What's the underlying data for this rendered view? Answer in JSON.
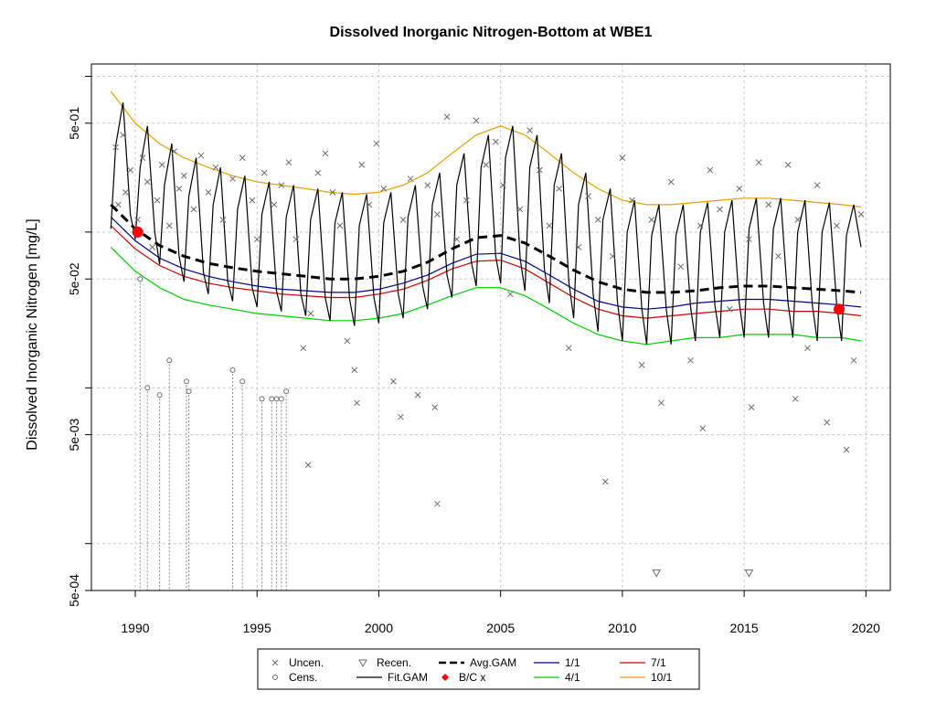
{
  "chart_data": {
    "type": "line",
    "title": "Dissolved Inorganic Nitrogen-Bottom at WBE1",
    "xlabel": "",
    "ylabel": "Dissolved Inorganic Nitrogen [mg/L]",
    "xlim": [
      1988.2,
      2021.0
    ],
    "ylim": [
      0.0005,
      1.2
    ],
    "y_scale": "log",
    "grid": true,
    "x_ticks": [
      1990,
      1995,
      2000,
      2005,
      2010,
      2015,
      2020
    ],
    "x_tick_labels": [
      "1990",
      "1995",
      "2000",
      "2005",
      "2010",
      "2015",
      "2020"
    ],
    "y_ticks": [
      0.0005,
      0.005,
      0.05,
      0.5
    ],
    "y_tick_labels": [
      "5e-04",
      "5e-03",
      "5e-02",
      "5e-01"
    ],
    "legend": {
      "placement": "bottom-center",
      "entries": [
        {
          "label": "Uncen.",
          "symbol": "x",
          "color": "#6b6b6b"
        },
        {
          "label": "Cens.",
          "symbol": "circle",
          "color": "#6b6b6b"
        },
        {
          "label": "Recen.",
          "symbol": "triangle-down",
          "color": "#6b6b6b"
        },
        {
          "label": "Fit.GAM",
          "symbol": "line",
          "color": "#000000"
        },
        {
          "label": "Avg.GAM",
          "symbol": "dashed-line",
          "color": "#000000"
        },
        {
          "label": "B/C x",
          "symbol": "diamond",
          "color": "#ff0000"
        },
        {
          "label": "1/1",
          "symbol": "line",
          "color": "#00008b"
        },
        {
          "label": "4/1",
          "symbol": "line",
          "color": "#00cc00"
        },
        {
          "label": "7/1",
          "symbol": "line",
          "color": "#cc0000"
        },
        {
          "label": "10/1",
          "symbol": "line",
          "color": "#e6a000"
        }
      ]
    },
    "series": [
      {
        "name": "Avg.GAM",
        "style": "dashed",
        "color": "#000000",
        "x": [
          1989.0,
          1990,
          1991,
          1992,
          1993,
          1994,
          1995,
          1996,
          1997,
          1998,
          1999,
          2000,
          2001,
          2002,
          2003,
          2004,
          2005,
          2006,
          2007,
          2008,
          2009,
          2010,
          2011,
          2012,
          2013,
          2014,
          2015,
          2016,
          2017,
          2018,
          2019,
          2019.8
        ],
        "y": [
          0.15,
          0.105,
          0.082,
          0.07,
          0.063,
          0.059,
          0.056,
          0.054,
          0.052,
          0.05,
          0.05,
          0.052,
          0.056,
          0.064,
          0.078,
          0.092,
          0.095,
          0.085,
          0.07,
          0.057,
          0.048,
          0.043,
          0.041,
          0.041,
          0.042,
          0.044,
          0.045,
          0.045,
          0.044,
          0.043,
          0.042,
          0.041
        ]
      },
      {
        "name": "1/1",
        "style": "solid",
        "color": "#00008b",
        "x": [
          1989.0,
          1990,
          1991,
          1992,
          1993,
          1994,
          1995,
          1996,
          1997,
          1998,
          1999,
          2000,
          2001,
          2002,
          2003,
          2004,
          2005,
          2006,
          2007,
          2008,
          2009,
          2010,
          2011,
          2012,
          2013,
          2014,
          2015,
          2016,
          2017,
          2018,
          2019,
          2019.8
        ],
        "y": [
          0.125,
          0.088,
          0.068,
          0.058,
          0.052,
          0.048,
          0.045,
          0.043,
          0.042,
          0.041,
          0.041,
          0.043,
          0.047,
          0.053,
          0.063,
          0.072,
          0.073,
          0.065,
          0.053,
          0.043,
          0.036,
          0.033,
          0.032,
          0.033,
          0.035,
          0.036,
          0.037,
          0.037,
          0.036,
          0.035,
          0.034,
          0.033
        ]
      },
      {
        "name": "7/1",
        "style": "solid",
        "color": "#cc0000",
        "x": [
          1989.0,
          1990,
          1991,
          1992,
          1993,
          1994,
          1995,
          1996,
          1997,
          1998,
          1999,
          2000,
          2001,
          2002,
          2003,
          2004,
          2005,
          2006,
          2007,
          2008,
          2009,
          2010,
          2011,
          2012,
          2013,
          2014,
          2015,
          2016,
          2017,
          2018,
          2019,
          2019.8
        ],
        "y": [
          0.11,
          0.078,
          0.061,
          0.052,
          0.047,
          0.044,
          0.042,
          0.04,
          0.039,
          0.038,
          0.038,
          0.04,
          0.043,
          0.049,
          0.058,
          0.065,
          0.066,
          0.058,
          0.047,
          0.038,
          0.032,
          0.029,
          0.028,
          0.029,
          0.03,
          0.031,
          0.032,
          0.032,
          0.031,
          0.031,
          0.03,
          0.029
        ]
      },
      {
        "name": "4/1",
        "style": "solid",
        "color": "#00cc00",
        "x": [
          1989.0,
          1990,
          1991,
          1992,
          1993,
          1994,
          1995,
          1996,
          1997,
          1998,
          1999,
          2000,
          2001,
          2002,
          2003,
          2004,
          2005,
          2006,
          2007,
          2008,
          2009,
          2010,
          2011,
          2012,
          2013,
          2014,
          2015,
          2016,
          2017,
          2018,
          2019,
          2019.8
        ],
        "y": [
          0.08,
          0.056,
          0.044,
          0.037,
          0.034,
          0.032,
          0.03,
          0.029,
          0.028,
          0.027,
          0.027,
          0.028,
          0.03,
          0.034,
          0.039,
          0.044,
          0.044,
          0.039,
          0.032,
          0.026,
          0.022,
          0.02,
          0.019,
          0.02,
          0.021,
          0.021,
          0.022,
          0.022,
          0.022,
          0.021,
          0.021,
          0.02
        ]
      },
      {
        "name": "10/1",
        "style": "solid",
        "color": "#e6a000",
        "x": [
          1989.0,
          1990,
          1991,
          1992,
          1993,
          1994,
          1995,
          1996,
          1997,
          1998,
          1999,
          2000,
          2001,
          2002,
          2003,
          2004,
          2005,
          2006,
          2007,
          2008,
          2009,
          2010,
          2011,
          2012,
          2013,
          2014,
          2015,
          2016,
          2017,
          2018,
          2019,
          2019.8
        ],
        "y": [
          0.8,
          0.5,
          0.37,
          0.3,
          0.26,
          0.23,
          0.21,
          0.2,
          0.19,
          0.18,
          0.175,
          0.18,
          0.2,
          0.24,
          0.32,
          0.42,
          0.48,
          0.42,
          0.32,
          0.24,
          0.19,
          0.16,
          0.15,
          0.15,
          0.155,
          0.16,
          0.165,
          0.165,
          0.16,
          0.155,
          0.15,
          0.145
        ]
      },
      {
        "name": "Fit.GAM",
        "style": "solid",
        "color": "#000000",
        "seasonal": true,
        "x": [
          1989.0,
          1989.2,
          1989.5,
          1989.8,
          1990.0,
          1990.2,
          1990.5,
          1990.8,
          1991.0,
          1991.2,
          1991.5,
          1991.8,
          1992.0,
          1992.2,
          1992.5,
          1992.8,
          1993.0,
          1993.2,
          1993.5,
          1993.8,
          1994.0,
          1994.2,
          1994.5,
          1994.8,
          1995.0,
          1995.2,
          1995.5,
          1995.8,
          1996.0,
          1996.2,
          1996.5,
          1996.8,
          1997.0,
          1997.2,
          1997.5,
          1997.8,
          1998.0,
          1998.2,
          1998.5,
          1998.8,
          1999.0,
          1999.2,
          1999.5,
          1999.8,
          2000.0,
          2000.2,
          2000.5,
          2000.8,
          2001.0,
          2001.2,
          2001.5,
          2001.8,
          2002.0,
          2002.2,
          2002.5,
          2002.8,
          2003.0,
          2003.2,
          2003.5,
          2003.8,
          2004.0,
          2004.2,
          2004.5,
          2004.8,
          2005.0,
          2005.2,
          2005.5,
          2005.8,
          2006.0,
          2006.2,
          2006.5,
          2006.8,
          2007.0,
          2007.2,
          2007.5,
          2007.8,
          2008.0,
          2008.2,
          2008.5,
          2008.8,
          2009.0,
          2009.2,
          2009.5,
          2009.8,
          2010.0,
          2010.2,
          2010.5,
          2010.8,
          2011.0,
          2011.2,
          2011.5,
          2011.8,
          2012.0,
          2012.2,
          2012.5,
          2012.8,
          2013.0,
          2013.2,
          2013.5,
          2013.8,
          2014.0,
          2014.2,
          2014.5,
          2014.8,
          2015.0,
          2015.2,
          2015.5,
          2015.8,
          2016.0,
          2016.2,
          2016.5,
          2016.8,
          2017.0,
          2017.2,
          2017.5,
          2017.8,
          2018.0,
          2018.2,
          2018.5,
          2018.8,
          2019.0,
          2019.2,
          2019.5,
          2019.8
        ],
        "y": [
          0.105,
          0.36,
          0.68,
          0.13,
          0.09,
          0.26,
          0.48,
          0.1,
          0.062,
          0.2,
          0.37,
          0.07,
          0.048,
          0.17,
          0.3,
          0.055,
          0.04,
          0.15,
          0.26,
          0.048,
          0.036,
          0.14,
          0.23,
          0.044,
          0.033,
          0.13,
          0.21,
          0.042,
          0.031,
          0.125,
          0.2,
          0.04,
          0.029,
          0.12,
          0.19,
          0.038,
          0.027,
          0.115,
          0.18,
          0.037,
          0.025,
          0.11,
          0.175,
          0.038,
          0.026,
          0.115,
          0.18,
          0.04,
          0.028,
          0.125,
          0.2,
          0.045,
          0.032,
          0.15,
          0.24,
          0.053,
          0.038,
          0.2,
          0.32,
          0.064,
          0.045,
          0.26,
          0.42,
          0.07,
          0.047,
          0.3,
          0.48,
          0.068,
          0.042,
          0.26,
          0.42,
          0.058,
          0.035,
          0.2,
          0.32,
          0.048,
          0.028,
          0.15,
          0.24,
          0.04,
          0.023,
          0.12,
          0.19,
          0.035,
          0.02,
          0.1,
          0.16,
          0.032,
          0.019,
          0.095,
          0.15,
          0.032,
          0.019,
          0.095,
          0.15,
          0.033,
          0.02,
          0.1,
          0.155,
          0.034,
          0.021,
          0.1,
          0.16,
          0.035,
          0.021,
          0.105,
          0.165,
          0.035,
          0.021,
          0.105,
          0.165,
          0.035,
          0.021,
          0.1,
          0.16,
          0.034,
          0.02,
          0.1,
          0.155,
          0.034,
          0.02,
          0.095,
          0.15,
          0.08
        ]
      }
    ],
    "points": {
      "Uncen.": [
        [
          1989.2,
          0.35
        ],
        [
          1989.3,
          0.15
        ],
        [
          1989.5,
          0.42
        ],
        [
          1989.6,
          0.18
        ],
        [
          1989.8,
          0.25
        ],
        [
          1990.1,
          0.12
        ],
        [
          1990.3,
          0.3
        ],
        [
          1990.5,
          0.21
        ],
        [
          1990.7,
          0.08
        ],
        [
          1990.9,
          0.16
        ],
        [
          1991.1,
          0.27
        ],
        [
          1991.4,
          0.11
        ],
        [
          1991.6,
          0.33
        ],
        [
          1991.8,
          0.19
        ],
        [
          1992.0,
          0.23
        ],
        [
          1992.4,
          0.14
        ],
        [
          1992.7,
          0.31
        ],
        [
          1993.0,
          0.18
        ],
        [
          1993.3,
          0.26
        ],
        [
          1993.6,
          0.12
        ],
        [
          1994.0,
          0.22
        ],
        [
          1994.4,
          0.3
        ],
        [
          1994.8,
          0.16
        ],
        [
          1995.0,
          0.09
        ],
        [
          1995.3,
          0.24
        ],
        [
          1995.7,
          0.15
        ],
        [
          1996.0,
          0.2
        ],
        [
          1996.3,
          0.28
        ],
        [
          1996.6,
          0.09
        ],
        [
          1996.9,
          0.018
        ],
        [
          1997.2,
          0.03
        ],
        [
          1997.5,
          0.24
        ],
        [
          1997.8,
          0.32
        ],
        [
          1998.1,
          0.18
        ],
        [
          1998.4,
          0.11
        ],
        [
          1998.7,
          0.02
        ],
        [
          1999.0,
          0.013
        ],
        [
          1999.3,
          0.27
        ],
        [
          1999.6,
          0.15
        ],
        [
          1999.9,
          0.37
        ],
        [
          2000.2,
          0.19
        ],
        [
          2000.6,
          0.011
        ],
        [
          2001.0,
          0.12
        ],
        [
          2001.3,
          0.22
        ],
        [
          2001.6,
          0.009
        ],
        [
          2002.0,
          0.2
        ],
        [
          2002.4,
          0.13
        ],
        [
          2002.8,
          0.55
        ],
        [
          2003.2,
          0.09
        ],
        [
          2003.6,
          0.16
        ],
        [
          2004.0,
          0.52
        ],
        [
          2004.4,
          0.27
        ],
        [
          2004.8,
          0.38
        ],
        [
          2005.1,
          0.2
        ],
        [
          2005.4,
          0.04
        ],
        [
          2005.8,
          0.14
        ],
        [
          2006.2,
          0.45
        ],
        [
          2006.6,
          0.25
        ],
        [
          2007.0,
          0.11
        ],
        [
          2007.4,
          0.19
        ],
        [
          2007.8,
          0.018
        ],
        [
          2008.2,
          0.08
        ],
        [
          2008.6,
          0.17
        ],
        [
          2009.0,
          0.12
        ],
        [
          2009.3,
          0.0025
        ],
        [
          2009.6,
          0.07
        ],
        [
          2010.0,
          0.3
        ],
        [
          2010.4,
          0.16
        ],
        [
          2010.8,
          0.014
        ],
        [
          2011.2,
          0.12
        ],
        [
          2011.6,
          0.008
        ],
        [
          2012.0,
          0.21
        ],
        [
          2012.4,
          0.06
        ],
        [
          2012.8,
          0.015
        ],
        [
          2013.2,
          0.11
        ],
        [
          2013.6,
          0.25
        ],
        [
          2014.0,
          0.14
        ],
        [
          2014.4,
          0.032
        ],
        [
          2014.8,
          0.19
        ],
        [
          2015.2,
          0.09
        ],
        [
          2015.6,
          0.28
        ],
        [
          2016.0,
          0.15
        ],
        [
          2016.4,
          0.07
        ],
        [
          2016.8,
          0.27
        ],
        [
          2017.2,
          0.12
        ],
        [
          2017.6,
          0.018
        ],
        [
          2018.0,
          0.2
        ],
        [
          2018.4,
          0.006
        ],
        [
          2018.8,
          0.11
        ],
        [
          2019.2,
          0.004
        ],
        [
          2019.5,
          0.015
        ],
        [
          2019.8,
          0.13
        ],
        [
          1999.1,
          0.008
        ],
        [
          2000.9,
          0.0065
        ],
        [
          2002.3,
          0.0075
        ],
        [
          2013.3,
          0.0055
        ],
        [
          2015.3,
          0.0075
        ],
        [
          2017.1,
          0.0085
        ],
        [
          1997.1,
          0.0032
        ],
        [
          2002.4,
          0.0018
        ]
      ],
      "Cens.": [
        [
          1990.2,
          0.05
        ],
        [
          1990.5,
          0.01
        ],
        [
          1991.0,
          0.009
        ],
        [
          1991.4,
          0.015
        ],
        [
          1992.1,
          0.011
        ],
        [
          1992.2,
          0.0095
        ],
        [
          1994.0,
          0.013
        ],
        [
          1994.4,
          0.011
        ],
        [
          1995.2,
          0.0085
        ],
        [
          1995.6,
          0.0085
        ],
        [
          1995.8,
          0.0085
        ],
        [
          1996.0,
          0.0085
        ],
        [
          1996.2,
          0.0095
        ]
      ],
      "Recen.": [
        [
          2011.4,
          0.00065
        ],
        [
          2015.2,
          0.00065
        ]
      ],
      "B/C x": [
        [
          1990.1,
          0.1
        ],
        [
          2018.9,
          0.032
        ]
      ]
    }
  }
}
